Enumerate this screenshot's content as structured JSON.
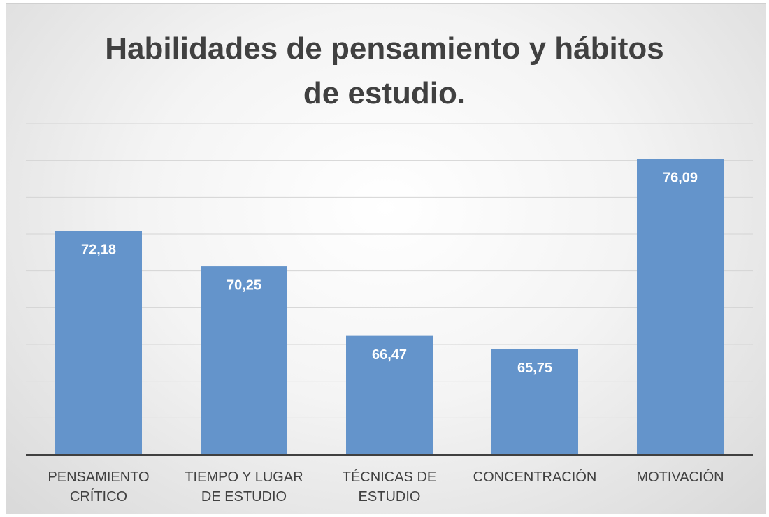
{
  "chart_data": {
    "type": "bar",
    "title": "Habilidades de pensamiento y hábitos de estudio.",
    "categories": [
      "PENSAMIENTO CRÍTICO",
      "TIEMPO Y LUGAR DE ESTUDIO",
      "TÉCNICAS DE ESTUDIO",
      "CONCENTRACIÓN",
      "MOTIVACIÓN"
    ],
    "values": [
      72.18,
      70.25,
      66.47,
      65.75,
      76.09
    ],
    "value_labels": [
      "72,18",
      "70,25",
      "66,47",
      "65,75",
      "76,09"
    ],
    "color": "#6494cb",
    "ylim": [
      60,
      78
    ],
    "yticks": [
      60,
      62,
      64,
      66,
      68,
      70,
      72,
      74,
      76,
      78
    ],
    "grid": true
  }
}
